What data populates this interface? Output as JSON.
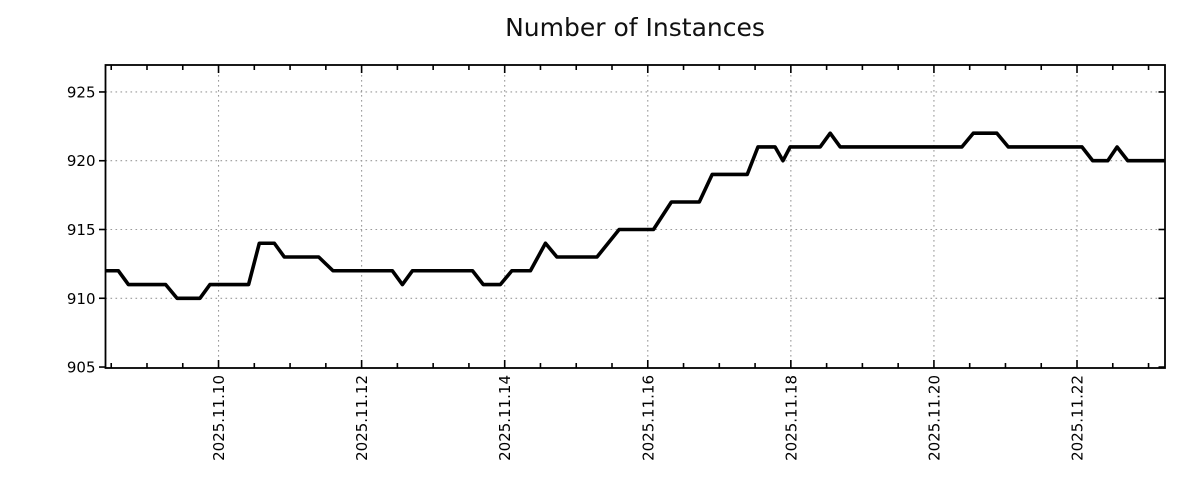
{
  "page": {
    "background": "#ffffff"
  },
  "chart_data": {
    "type": "line",
    "title": "Number of Instances",
    "xlabel": "",
    "ylabel": "",
    "legend": null,
    "grid": true,
    "line_color": "#000000",
    "grid_color": "#9a9a9a",
    "axis_color": "#000000",
    "x_axis": {
      "unit": "date (decimal day of November 2025)",
      "range_days": [
        8.42,
        23.23
      ],
      "minor_tick_interval_days": 0.5,
      "ticks": [
        {
          "day": 10,
          "label": "2025.11.10"
        },
        {
          "day": 12,
          "label": "2025.11.12"
        },
        {
          "day": 14,
          "label": "2025.11.14"
        },
        {
          "day": 16,
          "label": "2025.11.16"
        },
        {
          "day": 18,
          "label": "2025.11.18"
        },
        {
          "day": 20,
          "label": "2025.11.20"
        },
        {
          "day": 22,
          "label": "2025.11.22"
        }
      ]
    },
    "y_axis": {
      "range": [
        904.93,
        926.96
      ],
      "ticks": [
        905,
        910,
        915,
        920,
        925
      ]
    },
    "series": [
      {
        "name": "Number of Instances",
        "points": [
          [
            8.42,
            912
          ],
          [
            8.6,
            912
          ],
          [
            8.74,
            911
          ],
          [
            9.26,
            911
          ],
          [
            9.42,
            910
          ],
          [
            9.74,
            910
          ],
          [
            9.88,
            911
          ],
          [
            10.42,
            911
          ],
          [
            10.57,
            914
          ],
          [
            10.78,
            914
          ],
          [
            10.92,
            913
          ],
          [
            11.4,
            913
          ],
          [
            11.6,
            912
          ],
          [
            12.43,
            912
          ],
          [
            12.57,
            911
          ],
          [
            12.71,
            912
          ],
          [
            13.55,
            912
          ],
          [
            13.7,
            911
          ],
          [
            13.94,
            911
          ],
          [
            14.1,
            912
          ],
          [
            14.36,
            912
          ],
          [
            14.57,
            914
          ],
          [
            14.73,
            913
          ],
          [
            15.29,
            913
          ],
          [
            15.6,
            915
          ],
          [
            16.08,
            915
          ],
          [
            16.33,
            917
          ],
          [
            16.72,
            917
          ],
          [
            16.9,
            919
          ],
          [
            17.39,
            919
          ],
          [
            17.54,
            921
          ],
          [
            17.78,
            921
          ],
          [
            17.89,
            920
          ],
          [
            17.99,
            921
          ],
          [
            18.41,
            921
          ],
          [
            18.55,
            922
          ],
          [
            18.69,
            921
          ],
          [
            20.39,
            921
          ],
          [
            20.55,
            922
          ],
          [
            20.88,
            922
          ],
          [
            21.04,
            921
          ],
          [
            22.07,
            921
          ],
          [
            22.22,
            920
          ],
          [
            22.43,
            920
          ],
          [
            22.56,
            921
          ],
          [
            22.71,
            920
          ],
          [
            23.23,
            920
          ]
        ]
      }
    ]
  }
}
